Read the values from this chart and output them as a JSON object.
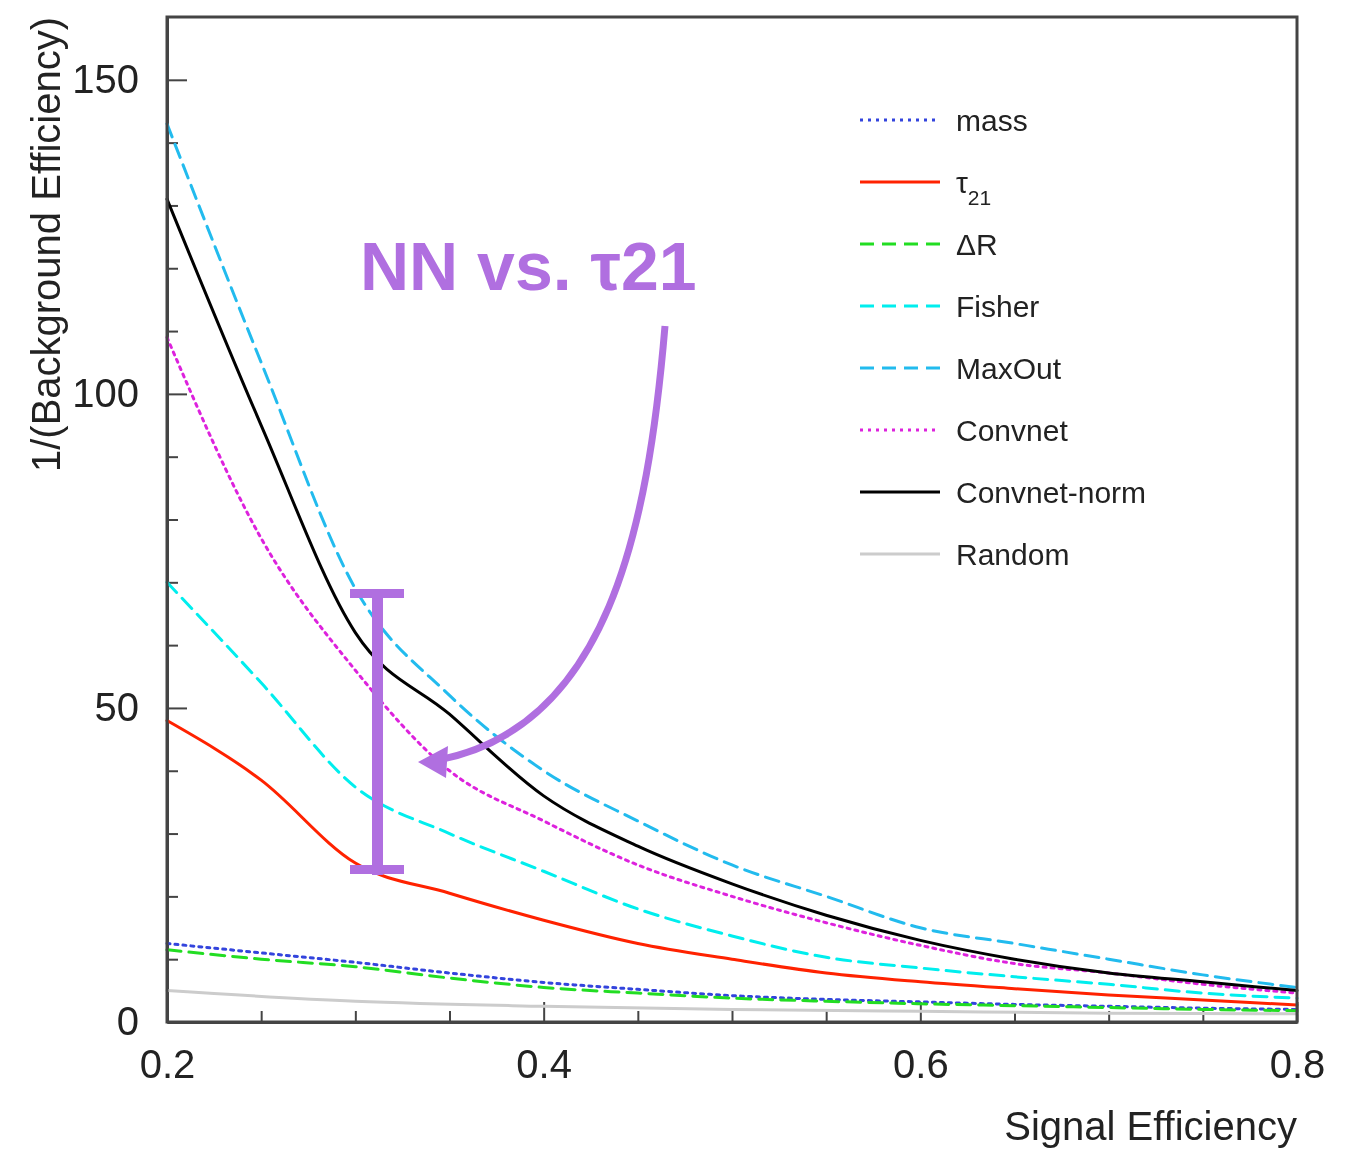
{
  "chart_data": {
    "type": "line",
    "xlabel": "Signal Efficiency",
    "ylabel": "1/(Background Efficiency)",
    "x": [
      0.2,
      0.25,
      0.3,
      0.35,
      0.4,
      0.45,
      0.5,
      0.55,
      0.6,
      0.65,
      0.7,
      0.75,
      0.8
    ],
    "xlim": [
      0.2,
      0.8
    ],
    "ylim": [
      0,
      160
    ],
    "xticks": [
      0.2,
      {
        "value": 0.25,
        "label": null
      },
      {
        "value": 0.3,
        "label": null
      },
      {
        "value": 0.35,
        "label": null
      },
      0.4,
      {
        "value": 0.45,
        "label": null
      },
      {
        "value": 0.5,
        "label": null
      },
      {
        "value": 0.55,
        "label": null
      },
      0.6,
      {
        "value": 0.65,
        "label": null
      },
      {
        "value": 0.7,
        "label": null
      },
      {
        "value": 0.75,
        "label": null
      },
      0.8
    ],
    "yticks": [
      0,
      {
        "value": 10,
        "label": null
      },
      {
        "value": 20,
        "label": null
      },
      {
        "value": 30,
        "label": null
      },
      {
        "value": 40,
        "label": null
      },
      50,
      {
        "value": 60,
        "label": null
      },
      {
        "value": 70,
        "label": null
      },
      {
        "value": 80,
        "label": null
      },
      {
        "value": 90,
        "label": null
      },
      100,
      {
        "value": 110,
        "label": null
      },
      {
        "value": 120,
        "label": null
      },
      {
        "value": 130,
        "label": null
      },
      {
        "value": 140,
        "label": null
      },
      150
    ],
    "grid": false,
    "legend": "top right",
    "series": [
      {
        "name": "mass",
        "color": "#3344dd",
        "line_style": "dotted",
        "values": [
          12.5,
          11,
          9.5,
          7.8,
          6.3,
          5.2,
          4.2,
          3.6,
          3.2,
          2.8,
          2.5,
          2.2,
          2.0
        ]
      },
      {
        "name": "τ$_{21}$",
        "color": "#ff2200",
        "line_style": "solid",
        "values": [
          48,
          38.5,
          25.3,
          20.5,
          16.2,
          12.5,
          10,
          7.8,
          6.4,
          5.3,
          4.3,
          3.5,
          2.7
        ]
      },
      {
        "name": "ΔR",
        "color": "#22dd22",
        "line_style": "dashed",
        "values": [
          11.5,
          10,
          8.8,
          7,
          5.5,
          4.6,
          3.8,
          3.3,
          2.9,
          2.6,
          2.3,
          2.0,
          1.8
        ]
      },
      {
        "name": "Fisher",
        "color": "#00eeee",
        "line_style": "dashed",
        "values": [
          70,
          54,
          37.4,
          30,
          24,
          18,
          13.7,
          10.3,
          8.6,
          7.2,
          6,
          4.6,
          3.8
        ]
      },
      {
        "name": "MaxOut",
        "color": "#22bbee",
        "line_style": "dashed",
        "values": [
          143,
          105,
          69,
          52,
          40,
          32,
          25,
          20,
          15,
          12.5,
          10,
          7.5,
          5.5
        ]
      },
      {
        "name": "Convnet",
        "color": "#dd22dd",
        "line_style": "dotted",
        "values": [
          109,
          77,
          56,
          40,
          32,
          25,
          20,
          15.8,
          12.2,
          9.3,
          7.8,
          6,
          4.6
        ]
      },
      {
        "name": "Convnet-norm",
        "color": "#000000",
        "line_style": "solid",
        "values": [
          131,
          95,
          62,
          49,
          36,
          28,
          22,
          17,
          13,
          10,
          7.8,
          6.4,
          5
        ]
      },
      {
        "name": "Random",
        "color": "#cccccc",
        "line_style": "solid",
        "x": [
          0.2,
          0.3,
          0.4,
          0.5,
          0.6,
          0.7,
          0.8
        ],
        "values": [
          5,
          3.3,
          2.5,
          2,
          1.7,
          1.4,
          1.3
        ]
      }
    ],
    "annotations": [
      "NN vs. τ21"
    ]
  }
}
